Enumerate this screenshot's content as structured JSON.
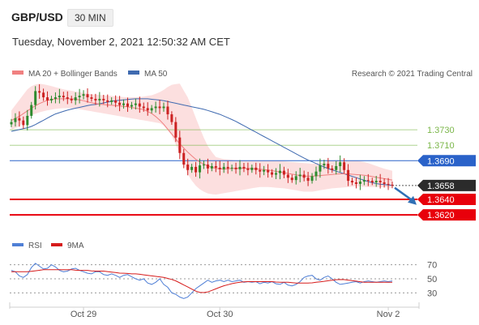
{
  "header": {
    "symbol": "GBP/USD",
    "timeframe": "30 MIN",
    "datetime": "Tuesday, November 2, 2021 12:50:32 AM CET"
  },
  "legend": {
    "ma20_bb": "MA 20 + Bollinger Bands",
    "ma50": "MA 50",
    "credit": "Research © 2021 Trading Central",
    "rsi": "RSI",
    "rsi_ma": "9MA"
  },
  "colors": {
    "ma20": "#f08080",
    "bb_fill": "#fcd9d9",
    "ma50": "#3f6ab0",
    "bull": "#2e8b2e",
    "bear": "#cc2222",
    "resistance_green": "#7ab648",
    "pivot_blue": "#2a62c9",
    "support_red": "#e8000b",
    "rsi": "#4f7fd6",
    "rsi_ma": "#d61b1b"
  },
  "chart_data": [
    {
      "type": "candlestick",
      "title": "GBP/USD 30 MIN",
      "y_range": [
        1.3596,
        1.3793
      ],
      "x_ticks": [
        {
          "label": "Oct 29",
          "index": 18
        },
        {
          "label": "Oct 30",
          "index": 52
        },
        {
          "label": "Nov 2",
          "index": 94
        }
      ],
      "n_bars": 96,
      "last_price": 1.3658,
      "levels": [
        {
          "value": 1.373,
          "label": "1.3730",
          "kind": "resistance"
        },
        {
          "value": 1.371,
          "label": "1.3710",
          "kind": "resistance"
        },
        {
          "value": 1.369,
          "label": "1.3690",
          "kind": "pivot"
        },
        {
          "value": 1.364,
          "label": "1.3640",
          "kind": "support"
        },
        {
          "value": 1.362,
          "label": "1.3620",
          "kind": "support"
        }
      ],
      "close_path": [
        1.374,
        1.3745,
        1.3742,
        1.3736,
        1.3748,
        1.3762,
        1.378,
        1.3778,
        1.3772,
        1.3768,
        1.377,
        1.3772,
        1.3774,
        1.3772,
        1.377,
        1.3768,
        1.3772,
        1.3774,
        1.3776,
        1.3772,
        1.377,
        1.3768,
        1.377,
        1.3768,
        1.3766,
        1.3768,
        1.3765,
        1.3762,
        1.3764,
        1.376,
        1.3762,
        1.3764,
        1.376,
        1.3758,
        1.3755,
        1.3758,
        1.376,
        1.3758,
        1.376,
        1.375,
        1.374,
        1.372,
        1.37,
        1.3685,
        1.3678,
        1.3682,
        1.3675,
        1.3684,
        1.3685,
        1.368,
        1.3683,
        1.3681,
        1.3679,
        1.3682,
        1.368,
        1.3681,
        1.3679,
        1.3682,
        1.368,
        1.3678,
        1.3681,
        1.3678,
        1.3676,
        1.3678,
        1.3675,
        1.3672,
        1.3674,
        1.3677,
        1.3672,
        1.3668,
        1.3665,
        1.367,
        1.3672,
        1.3668,
        1.3664,
        1.367,
        1.3676,
        1.3684,
        1.3686,
        1.368,
        1.3678,
        1.3683,
        1.3688,
        1.3678,
        1.3664,
        1.3662,
        1.366,
        1.3663,
        1.3665,
        1.3664,
        1.3662,
        1.3664,
        1.3662,
        1.366,
        1.3659,
        1.3658
      ],
      "ma50_path": [
        1.3728,
        1.373,
        1.3732,
        1.3735,
        1.374,
        1.3745,
        1.375,
        1.3753,
        1.3756,
        1.3758,
        1.376,
        1.3762,
        1.3763,
        1.3765,
        1.3767,
        1.3768,
        1.3769,
        1.377,
        1.377,
        1.377,
        1.3769,
        1.3768,
        1.3766,
        1.3764,
        1.3762,
        1.376,
        1.3758,
        1.3756,
        1.3753,
        1.375,
        1.3746,
        1.3742,
        1.3737,
        1.3732,
        1.3727,
        1.3722,
        1.3717,
        1.3712,
        1.3707,
        1.3702,
        1.3697,
        1.3692,
        1.3688,
        1.3684,
        1.368,
        1.3677,
        1.3674,
        1.3671,
        1.3668,
        1.3665,
        1.3662,
        1.366,
        1.3659,
        1.3658
      ],
      "bb_upper_path": [
        1.3755,
        1.377,
        1.3785,
        1.379,
        1.3788,
        1.3785,
        1.3782,
        1.378,
        1.3778,
        1.3776,
        1.3775,
        1.3774,
        1.3773,
        1.3772,
        1.3772,
        1.3773,
        1.3775,
        1.378,
        1.3788,
        1.379,
        1.377,
        1.374,
        1.3712,
        1.3695,
        1.3692,
        1.3691,
        1.369,
        1.369,
        1.369,
        1.369,
        1.369,
        1.3689,
        1.3688,
        1.3687,
        1.3686,
        1.3687,
        1.369,
        1.3691,
        1.369,
        1.369,
        1.3688,
        1.3684,
        1.368,
        1.3677
      ],
      "bb_lower_path": [
        1.373,
        1.3735,
        1.3748,
        1.3752,
        1.3755,
        1.3757,
        1.3758,
        1.3758,
        1.3756,
        1.3754,
        1.3752,
        1.375,
        1.3748,
        1.3746,
        1.3744,
        1.3742,
        1.374,
        1.3738,
        1.3725,
        1.37,
        1.367,
        1.3655,
        1.3648,
        1.3646,
        1.3648,
        1.365,
        1.3652,
        1.3654,
        1.3656,
        1.3656,
        1.3655,
        1.3654,
        1.3652,
        1.365,
        1.365,
        1.3652,
        1.3654,
        1.3655,
        1.3656,
        1.3657,
        1.3656,
        1.3656,
        1.3656,
        1.3655
      ],
      "ma20_path": [
        1.3742,
        1.3748,
        1.3756,
        1.3763,
        1.3768,
        1.377,
        1.377,
        1.377,
        1.3768,
        1.3765,
        1.3763,
        1.3762,
        1.3761,
        1.376,
        1.3758,
        1.3756,
        1.375,
        1.374,
        1.3726,
        1.3712,
        1.37,
        1.369,
        1.3684,
        1.368,
        1.3679,
        1.368,
        1.368,
        1.368,
        1.3679,
        1.3678,
        1.3676,
        1.3674,
        1.3672,
        1.367,
        1.367,
        1.3671,
        1.3672,
        1.3673,
        1.3673,
        1.3672,
        1.3671,
        1.3669,
        1.3667,
        1.3665
      ],
      "forecast_arrow": {
        "from": 1.3655,
        "to": 1.3635
      }
    },
    {
      "type": "line",
      "title": "RSI",
      "y_range": [
        20,
        80
      ],
      "levels": [
        {
          "value": 70,
          "label": "70"
        },
        {
          "value": 50,
          "label": "50"
        },
        {
          "value": 30,
          "label": "30"
        }
      ],
      "series": [
        {
          "name": "RSI",
          "values": [
            62,
            60,
            54,
            52,
            56,
            66,
            72,
            68,
            64,
            65,
            70,
            67,
            62,
            60,
            61,
            64,
            65,
            62,
            60,
            58,
            57,
            60,
            60,
            56,
            55,
            57,
            55,
            52,
            55,
            56,
            53,
            50,
            48,
            50,
            44,
            42,
            45,
            50,
            42,
            38,
            30,
            28,
            24,
            22,
            24,
            30,
            36,
            40,
            44,
            48,
            45,
            47,
            48,
            46,
            48,
            46,
            47,
            48,
            45,
            46,
            45,
            46,
            43,
            45,
            44,
            46,
            43,
            42,
            45,
            41,
            40,
            42,
            46,
            52,
            54,
            55,
            50,
            48,
            52,
            54,
            50,
            45,
            42,
            43,
            44,
            45,
            46,
            44,
            46,
            47,
            46,
            45,
            46,
            47,
            46,
            47
          ]
        },
        {
          "name": "9MA",
          "values": [
            60,
            60,
            60,
            60,
            61,
            62,
            63,
            63,
            63,
            63,
            63,
            63,
            62,
            62,
            62,
            61,
            61,
            61,
            60,
            59,
            58,
            58,
            57,
            57,
            56,
            55,
            54,
            53,
            52,
            50,
            48,
            44,
            40,
            36,
            32,
            30,
            31,
            34,
            37,
            40,
            42,
            44,
            45,
            46,
            46,
            46,
            46,
            46,
            46,
            45,
            45,
            45,
            44,
            44,
            44,
            44,
            45,
            46,
            47,
            48,
            49,
            49,
            48,
            47,
            46,
            45,
            45,
            45,
            45,
            45,
            45
          ]
        }
      ]
    }
  ]
}
